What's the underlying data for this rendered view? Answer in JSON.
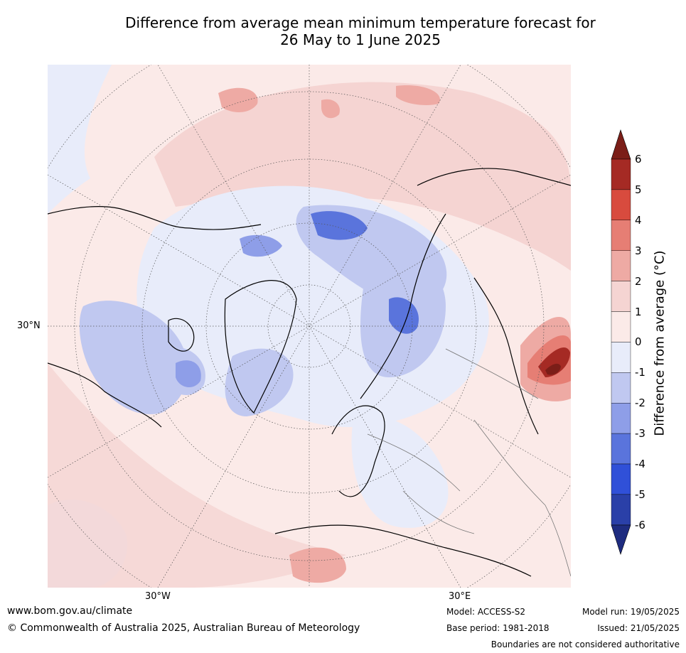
{
  "title_line1": "Difference from average mean minimum temperature forecast for",
  "title_line2": "26 May to 1 June 2025",
  "map": {
    "lat_label": "30°N",
    "lon_labels": [
      "30°W",
      "30°E"
    ]
  },
  "colorbar": {
    "label": "Difference from average (°C)",
    "ticks": [
      "6",
      "5",
      "4",
      "3",
      "2",
      "1",
      "0",
      "-1",
      "-2",
      "-3",
      "-4",
      "-5",
      "-6"
    ],
    "colors": {
      "over": "#7b1e18",
      "5_6": "#a52a24",
      "4_5": "#d84b3e",
      "3_4": "#e67e74",
      "2_3": "#eeaaa4",
      "1_2": "#f5d4d2",
      "0_1": "#fbeae8",
      "m1_0": "#e8ecfa",
      "m2_m1": "#c0c8f0",
      "m3_m2": "#8e9ee8",
      "m4_m3": "#5a74dc",
      "m5_m4": "#3050d8",
      "m6_m5": "#2a40a8",
      "under": "#1e2c80"
    }
  },
  "footer": {
    "website": "www.bom.gov.au/climate",
    "copyright": "© Commonwealth of Australia 2025, Australian Bureau of Meteorology",
    "model": "Model: ACCESS-S2",
    "base_period": "Base period: 1981-2018",
    "model_run": "Model run: 19/05/2025",
    "issued": "Issued: 21/05/2025",
    "disclaimer": "Boundaries are not considered authoritative"
  }
}
